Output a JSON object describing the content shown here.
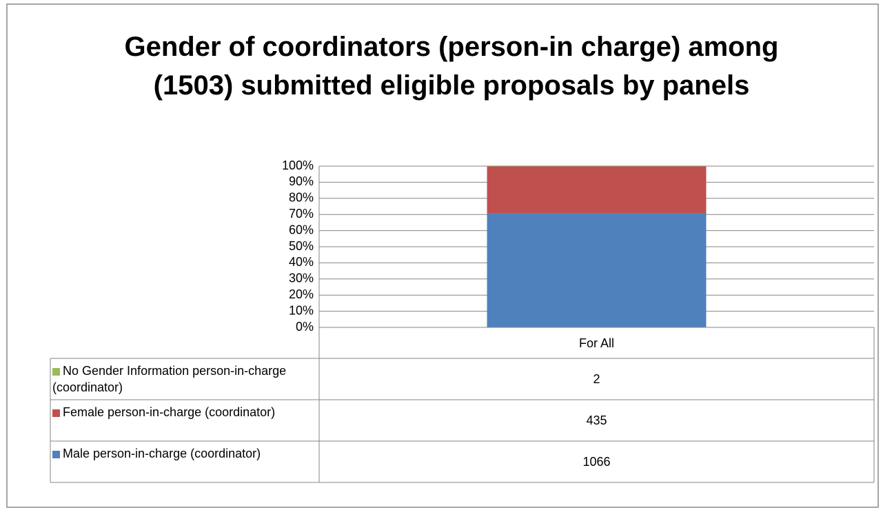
{
  "chart_data": {
    "type": "bar",
    "stacked": "percent",
    "title": "Gender of coordinators (person-in charge) among (1503) submitted eligible proposals by panels",
    "categories": [
      "For All"
    ],
    "series": [
      {
        "name": "Male person-in-charge (coordinator)",
        "color": "#4f81bd",
        "values": [
          1066
        ]
      },
      {
        "name": "Female person-in-charge (coordinator)",
        "color": "#c0504d",
        "values": [
          435
        ]
      },
      {
        "name": "No Gender Information person-in-charge (coordinator)",
        "color": "#9bbb59",
        "values": [
          2
        ]
      }
    ],
    "ylim": [
      0,
      100
    ],
    "yticks": [
      {
        "value": 0,
        "label": "0%"
      },
      {
        "value": 10,
        "label": "10%"
      },
      {
        "value": 20,
        "label": "20%"
      },
      {
        "value": 30,
        "label": "30%"
      },
      {
        "value": 40,
        "label": "40%"
      },
      {
        "value": 50,
        "label": "50%"
      },
      {
        "value": 60,
        "label": "60%"
      },
      {
        "value": 70,
        "label": "70%"
      },
      {
        "value": 80,
        "label": "80%"
      },
      {
        "value": 90,
        "label": "90%"
      },
      {
        "value": 100,
        "label": "100%"
      }
    ],
    "grid": true
  }
}
